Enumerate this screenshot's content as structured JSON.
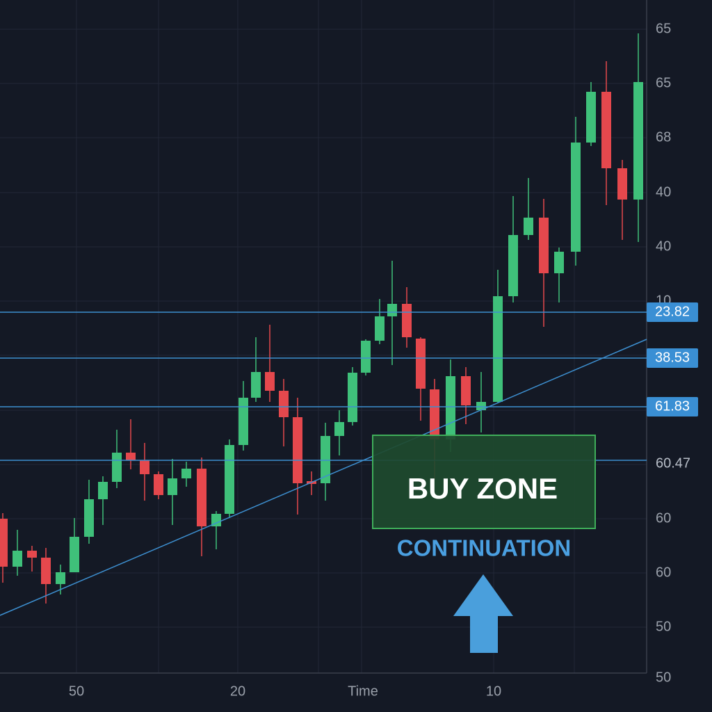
{
  "axis": {
    "y_labels": [
      "65",
      "65",
      "68",
      "40",
      "40",
      "10",
      "60",
      "60",
      "50",
      "50"
    ],
    "x_labels": [
      "50",
      "20",
      "Time",
      "10"
    ]
  },
  "levels": [
    {
      "label": "23.82",
      "boxed": true
    },
    {
      "label": "38.53",
      "boxed": true
    },
    {
      "label": "61.83",
      "boxed": true
    },
    {
      "label": "60.47",
      "boxed": false
    }
  ],
  "zone": {
    "title": "BUY ZONE",
    "caption": "CONTINUATION"
  }
}
